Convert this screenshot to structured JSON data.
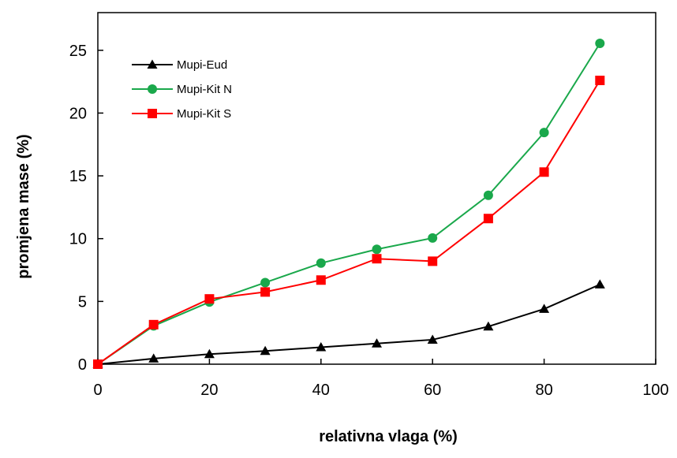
{
  "chart_data": {
    "type": "line",
    "title": "",
    "xlabel": "relativna vlaga (%)",
    "ylabel": "promjena mase (%)",
    "xlim": [
      0,
      100
    ],
    "ylim": [
      0,
      28
    ],
    "xticks": [
      0,
      20,
      40,
      60,
      80,
      100
    ],
    "yticks": [
      0,
      5,
      10,
      15,
      20,
      25
    ],
    "grid": false,
    "legend_position": "top-left",
    "x": [
      0,
      10,
      20,
      30,
      40,
      50,
      60,
      70,
      80,
      90
    ],
    "series": [
      {
        "name": "Mupi-Eud",
        "color": "#000000",
        "marker": "triangle",
        "values": [
          0,
          0.45,
          0.8,
          1.05,
          1.35,
          1.65,
          1.95,
          3.0,
          4.4,
          6.35
        ]
      },
      {
        "name": "Mupi-Kit N",
        "color": "#1aa84b",
        "marker": "circle",
        "values": [
          0,
          3.05,
          4.95,
          6.5,
          8.05,
          9.15,
          10.05,
          13.45,
          18.45,
          25.55
        ]
      },
      {
        "name": "Mupi-Kit S",
        "color": "#ff0000",
        "marker": "square",
        "values": [
          0,
          3.15,
          5.2,
          5.75,
          6.7,
          8.4,
          8.2,
          11.6,
          15.3,
          22.6
        ]
      }
    ]
  }
}
